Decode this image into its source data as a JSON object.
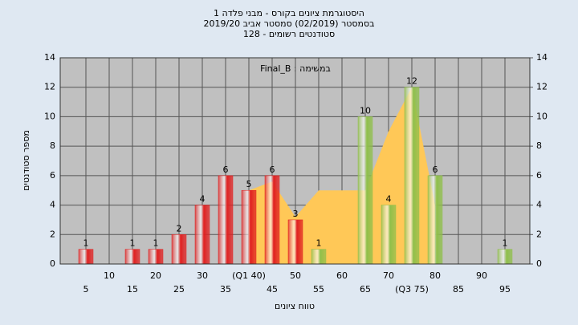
{
  "chart_data": {
    "type": "bar",
    "title": [
      "היסטוגרמת ציונים בקורס - מבני פלדה 1",
      "בסמסטר  (02/2019)  סמסטר אביב 2019/20",
      "סטודנטים רשומים - 128"
    ],
    "annotation": "במשימה : Final_B",
    "xlabel": "טווח ציונים",
    "ylabel": "מספר סטודנטים",
    "categories": [
      "5",
      "10",
      "15",
      "20",
      "25",
      "30",
      "35",
      "(Q1 40)",
      "45",
      "50",
      "55",
      "60",
      "65",
      "70",
      "(Q3 75)",
      "80",
      "85",
      "90",
      "95"
    ],
    "values": [
      1,
      0,
      1,
      1,
      2,
      4,
      6,
      5,
      6,
      3,
      1,
      0,
      10,
      4,
      12,
      6,
      0,
      0,
      1
    ],
    "colors": [
      "#e02020",
      "#e02020",
      "#e02020",
      "#e02020",
      "#e02020",
      "#e02020",
      "#e02020",
      "#e02020",
      "#e02020",
      "#e02020",
      "#8fbf4a",
      "#8fbf4a",
      "#8fbf4a",
      "#8fbf4a",
      "#8fbf4a",
      "#8fbf4a",
      "#8fbf4a",
      "#8fbf4a",
      "#8fbf4a"
    ],
    "area": {
      "color": "#ffc857",
      "values": [
        null,
        null,
        null,
        null,
        null,
        null,
        null,
        5,
        5.6,
        3.2,
        5,
        5,
        5,
        9,
        12,
        4,
        null,
        null,
        null
      ]
    },
    "ylim": [
      0,
      14
    ],
    "yticks": [
      0,
      2,
      4,
      6,
      8,
      10,
      12,
      14
    ],
    "y2lim": [
      0,
      14
    ],
    "y2ticks": [
      0,
      2,
      4,
      6,
      8,
      10,
      12,
      14
    ],
    "grid": true
  }
}
